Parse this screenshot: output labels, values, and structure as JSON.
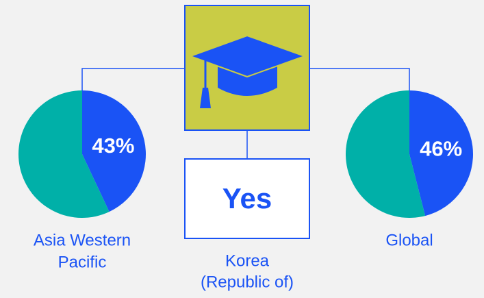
{
  "chart_data": [
    {
      "type": "pie",
      "label": [
        "Asia Western",
        "Pacific"
      ],
      "values": [
        43,
        57
      ],
      "value_labels": [
        "43%",
        null
      ],
      "colors": [
        "#1a53f5",
        "#00b0a8"
      ]
    },
    {
      "type": "pie",
      "label": [
        "Global"
      ],
      "values": [
        46,
        54
      ],
      "value_labels": [
        "46%",
        null
      ],
      "colors": [
        "#1a53f5",
        "#00b0a8"
      ]
    }
  ],
  "center": {
    "value": "Yes",
    "label": [
      "Korea",
      "(Republic of)"
    ]
  }
}
